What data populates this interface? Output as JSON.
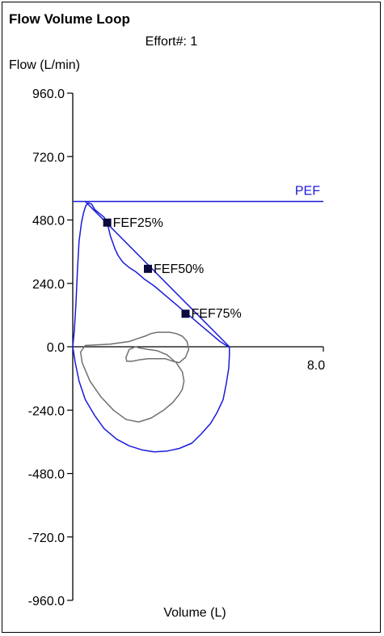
{
  "chart_data": {
    "type": "line",
    "title": "Flow Volume Loop",
    "subtitle": "Effort#: 1",
    "ylabel": "Flow (L/min)",
    "xlabel": "Volume (L)",
    "xlim": [
      0,
      8.0
    ],
    "ylim": [
      -960,
      960
    ],
    "y_ticks": [
      "960.0",
      "720.0",
      "480.0",
      "240.0",
      "0.0",
      "-240.0",
      "-480.0",
      "-720.0",
      "-960.0"
    ],
    "y_tick_values": [
      960,
      720,
      480,
      240,
      0,
      -240,
      -480,
      -720,
      -960
    ],
    "x_tick_labels": [
      "8.0"
    ],
    "x_tick_values": [
      8.0
    ],
    "grid": false,
    "colors": {
      "primary": "#1a1adc",
      "secondary": "#707070",
      "marker": "#0a0a3c"
    },
    "pef": {
      "label": "PEF",
      "value": 550
    },
    "markers": [
      {
        "label": "FEF25%",
        "x": 1.1,
        "y": 470
      },
      {
        "label": "FEF50%",
        "x": 2.4,
        "y": 295
      },
      {
        "label": "FEF75%",
        "x": 3.6,
        "y": 125
      }
    ],
    "predicted_line": [
      [
        0.4,
        550
      ],
      [
        5.0,
        0
      ]
    ],
    "series": [
      {
        "color": "blue",
        "x": [
          0.0,
          0.05,
          0.1,
          0.15,
          0.2,
          0.28,
          0.35,
          0.42,
          0.5,
          0.6,
          0.7,
          0.85,
          1.0,
          1.1,
          1.2,
          1.35,
          1.45,
          1.6,
          1.8,
          2.0,
          2.3,
          2.6,
          2.9,
          3.2,
          3.5,
          3.8,
          4.1,
          4.4,
          4.7,
          4.9,
          5.0,
          5.0,
          4.98,
          4.9,
          4.8,
          4.6,
          4.4,
          4.1,
          3.8,
          3.4,
          3.0,
          2.6,
          2.2,
          1.8,
          1.4,
          1.0,
          0.7,
          0.4,
          0.2,
          0.08,
          0.0
        ],
        "y": [
          0,
          60,
          160,
          290,
          400,
          470,
          510,
          535,
          545,
          540,
          520,
          505,
          490,
          470,
          420,
          370,
          345,
          320,
          300,
          285,
          255,
          230,
          200,
          170,
          140,
          110,
          80,
          50,
          20,
          5,
          0,
          -30,
          -80,
          -140,
          -200,
          -250,
          -290,
          -330,
          -365,
          -385,
          -395,
          -398,
          -390,
          -375,
          -350,
          -310,
          -260,
          -200,
          -130,
          -60,
          0
        ]
      },
      {
        "color": "gray",
        "x": [
          2.0,
          1.8,
          1.7,
          1.72,
          1.9,
          2.1,
          2.4,
          2.7,
          2.95,
          3.2,
          3.4,
          3.6,
          3.7,
          3.65,
          3.5,
          3.3,
          3.1,
          2.9,
          2.7,
          2.5,
          2.3,
          2.05,
          1.8,
          1.5,
          1.2,
          0.9,
          0.6,
          0.4,
          0.25,
          0.3,
          0.55,
          0.9,
          1.3,
          1.7,
          2.1,
          2.5,
          2.9,
          3.2,
          3.4,
          3.5,
          3.55,
          3.5,
          3.3,
          3.0,
          2.7,
          2.4,
          2.15,
          2.0
        ],
        "y": [
          0,
          -10,
          -40,
          -55,
          -55,
          -50,
          -45,
          -45,
          -45,
          -55,
          -60,
          -40,
          -10,
          20,
          40,
          50,
          55,
          55,
          55,
          50,
          40,
          30,
          20,
          15,
          10,
          8,
          6,
          5,
          -20,
          -60,
          -130,
          -190,
          -240,
          -275,
          -285,
          -270,
          -240,
          -210,
          -180,
          -160,
          -130,
          -95,
          -60,
          -30,
          -15,
          -10,
          -5,
          0
        ]
      }
    ]
  }
}
